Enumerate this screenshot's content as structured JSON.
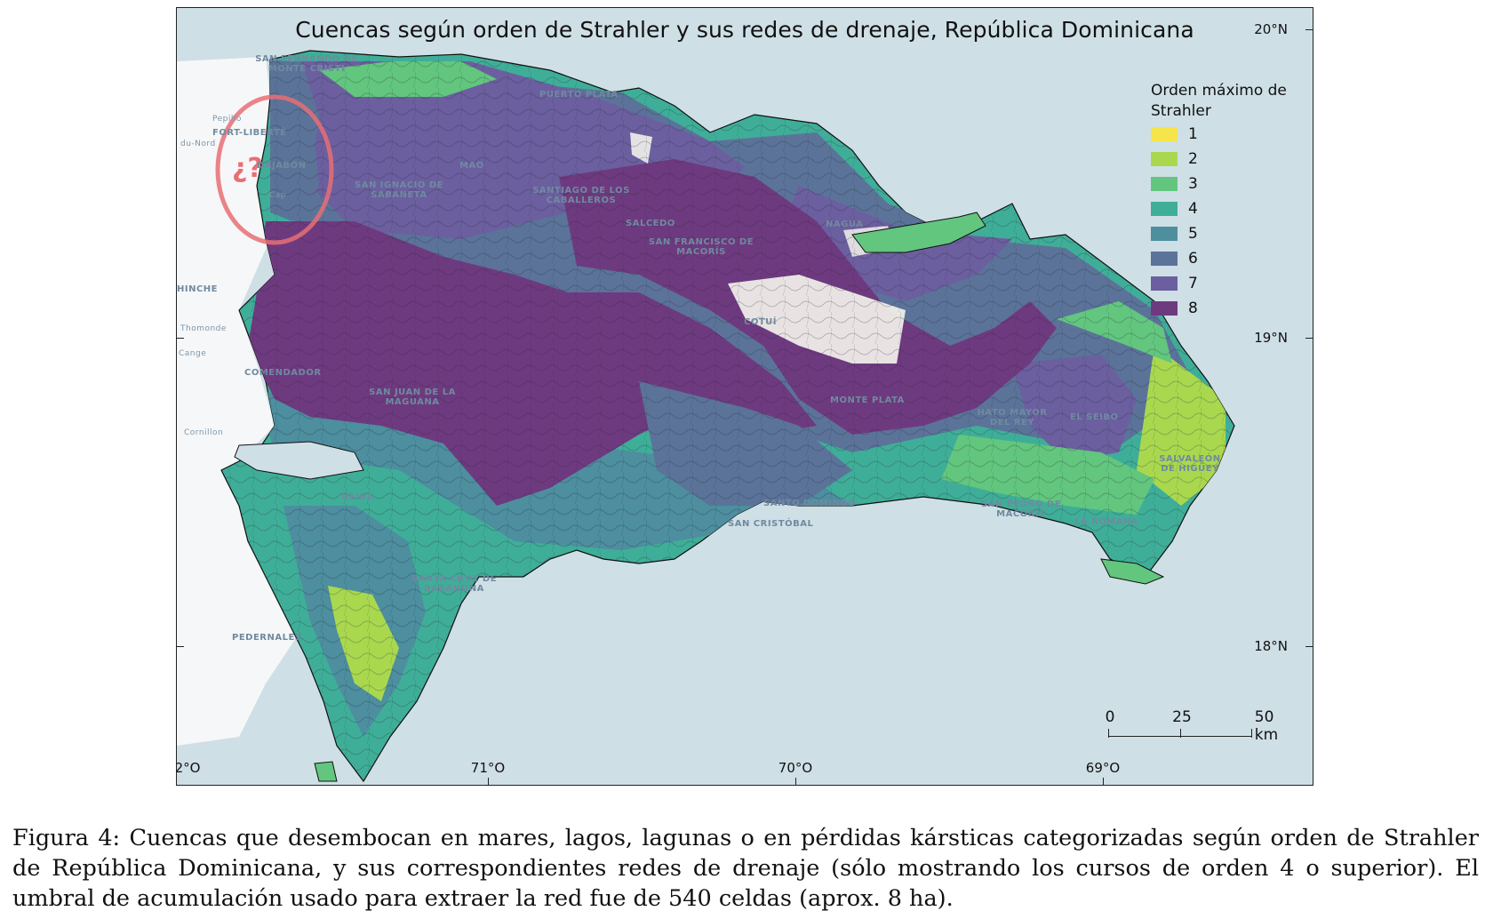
{
  "map": {
    "title": "Cuencas según orden de Strahler y sus redes de drenaje, República Dominicana",
    "legend": {
      "title": "Orden máximo de Strahler",
      "items": [
        {
          "label": "1",
          "color": "#f5e44a"
        },
        {
          "label": "2",
          "color": "#a9d84f"
        },
        {
          "label": "3",
          "color": "#62c67e"
        },
        {
          "label": "4",
          "color": "#3fae98"
        },
        {
          "label": "5",
          "color": "#4d8e9f"
        },
        {
          "label": "6",
          "color": "#5b7399"
        },
        {
          "label": "7",
          "color": "#6b5f9f"
        },
        {
          "label": "8",
          "color": "#6e3a7f"
        }
      ]
    },
    "latitude_labels": [
      "20°N",
      "19°N",
      "18°N"
    ],
    "longitude_labels": [
      "2°O",
      "71°O",
      "70°O",
      "69°O"
    ],
    "scale_bar": {
      "labels": [
        "0",
        "25",
        "50 km"
      ]
    },
    "annotation": "¿?",
    "places": {
      "san_fernando": "SAN FERNANDO DE MONTE CRISTI",
      "santiago": "SANTIAGO DE LOS CABALLEROS",
      "san_ignacio": "SAN IGNACIO DE SABANETA",
      "puerto_plata": "PUERTO PLATA",
      "san_francisco": "SAN FRANCISCO DE MACORÍS",
      "salcedo": "SALCEDO",
      "nagua": "NAGUA",
      "cotui": "COTUÍ",
      "monte_plata": "MONTE PLATA",
      "hato_mayor": "HATO MAYOR DEL REY",
      "el_seibo": "EL SEIBO",
      "higuey": "SALVALEÓN DE HIGÜEY",
      "san_juan": "SAN JUAN DE LA MAGUANA",
      "neiba": "NEIBA",
      "barahona": "SANTA CRUZ DE BARAHONA",
      "santo_domingo": "SANTO DOMINGO",
      "san_pedro": "SAN PEDRO DE MACORÍS",
      "la_romana": "LA ROMANA",
      "san_cristobal": "SAN CRISTÓBAL",
      "pedernales": "PEDERNALES",
      "mao": "MAO",
      "pepillo": "Pepillo",
      "fort_liberte": "FORT-LIBERTÉ",
      "dajabon": "DAJABÓN",
      "du_nord": "du-Nord",
      "cap": "Cap",
      "hinche": "HINCHE",
      "thomonde": "Thomonde",
      "cange": "Cange",
      "comendador": "COMENDADOR",
      "cornillon": "Cornillon"
    }
  },
  "caption": "Figura 4: Cuencas que desembocan en mares, lagos, lagunas o en pérdidas kársticas categorizadas según orden de Strahler de República Dominicana, y sus correspondientes redes de drenaje (sólo mostrando los cursos de orden 4 o superior). El umbral de acumulación usado para extraer la red fue de 540 celdas (aprox. 8 ha)."
}
